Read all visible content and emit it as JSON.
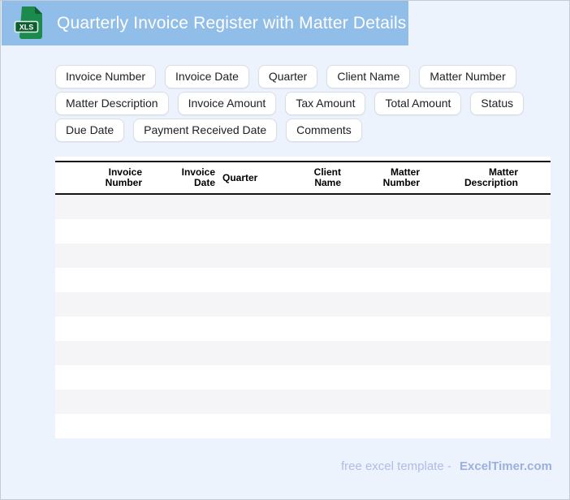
{
  "banner": {
    "title": "Quarterly Invoice Register with Matter Details",
    "icon_label": "XLS",
    "background_color": "#90bee9",
    "icon_green": "#1b8a4c",
    "icon_dark_green": "#0c5c30"
  },
  "chips": [
    "Invoice Number",
    "Invoice Date",
    "Quarter",
    "Client Name",
    "Matter Number",
    "Matter Description",
    "Invoice Amount",
    "Tax Amount",
    "Total Amount",
    "Status",
    "Due Date",
    "Payment Received Date",
    "Comments"
  ],
  "table": {
    "columns": [
      {
        "line1": "Invoice",
        "line2": "Number"
      },
      {
        "line1": "Invoice",
        "line2": "Date"
      },
      {
        "line1": "Quarter",
        "line2": ""
      },
      {
        "line1": "Client",
        "line2": "Name"
      },
      {
        "line1": "Matter",
        "line2": "Number"
      },
      {
        "line1": "Matter",
        "line2": "Description"
      }
    ],
    "empty_row_count": 10,
    "stripe_color": "#f5f4f6"
  },
  "footer": {
    "tagline": "free excel template -",
    "brand": "ExcelTimer.com"
  }
}
